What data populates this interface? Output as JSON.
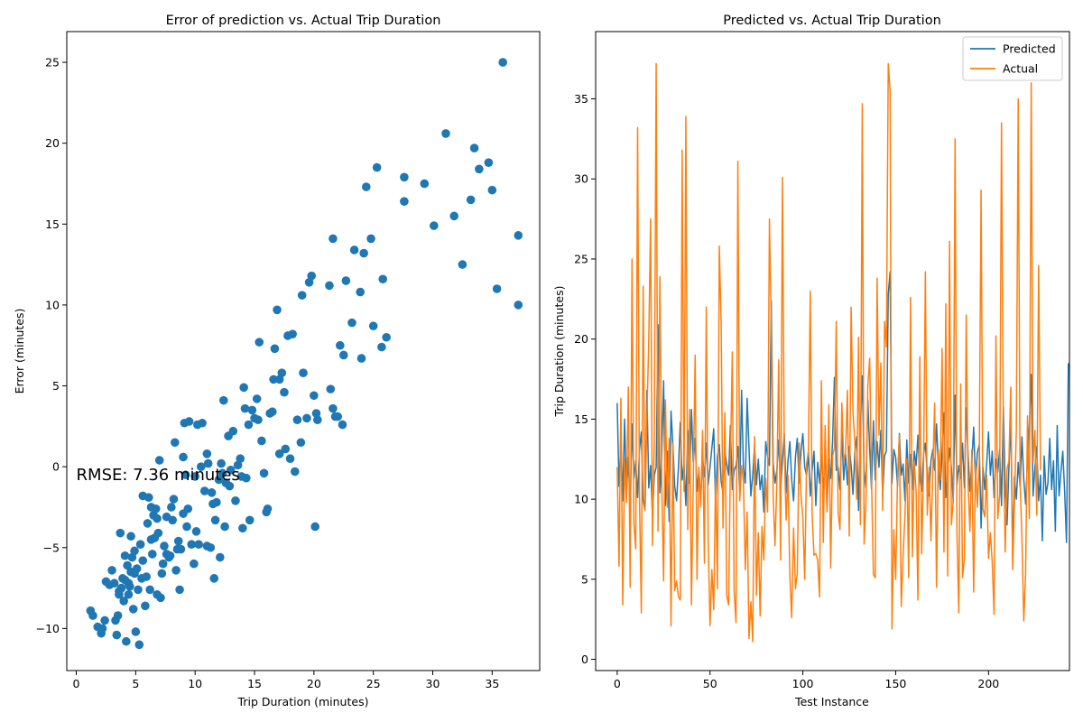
{
  "chart_data": [
    {
      "type": "scatter",
      "title": "Error of prediction vs. Actual Trip Duration",
      "xlabel": "Trip Duration (minutes)",
      "ylabel": "Error (minutes)",
      "xlim": [
        -0.8,
        39.0
      ],
      "ylim": [
        -12.6,
        26.9
      ],
      "xticks": [
        0,
        5,
        10,
        15,
        20,
        25,
        30,
        35
      ],
      "yticks": [
        -10,
        -5,
        0,
        5,
        10,
        15,
        20,
        25
      ],
      "color": "#1f77b4",
      "annotation": {
        "text": "RMSE: 7.36 minutes",
        "x": 0.0,
        "y": -0.5
      },
      "points": [
        [
          1.2,
          -8.9
        ],
        [
          1.4,
          -9.2
        ],
        [
          1.8,
          -9.9
        ],
        [
          2.1,
          -10.3
        ],
        [
          2.4,
          -9.5
        ],
        [
          2.5,
          -7.1
        ],
        [
          2.8,
          -7.3
        ],
        [
          3.0,
          -6.4
        ],
        [
          3.2,
          -7.2
        ],
        [
          3.4,
          -10.4
        ],
        [
          3.5,
          -9.2
        ],
        [
          3.6,
          -7.7
        ],
        [
          3.7,
          -4.1
        ],
        [
          3.8,
          -7.5
        ],
        [
          3.9,
          -6.9
        ],
        [
          4.0,
          -8.3
        ],
        [
          4.1,
          -7.0
        ],
        [
          4.1,
          -5.5
        ],
        [
          4.2,
          -10.8
        ],
        [
          4.3,
          -6.1
        ],
        [
          4.4,
          -7.2
        ],
        [
          4.5,
          -7.4
        ],
        [
          4.6,
          -6.5
        ],
        [
          4.6,
          -4.3
        ],
        [
          4.7,
          -5.6
        ],
        [
          4.8,
          -8.8
        ],
        [
          4.9,
          -5.2
        ],
        [
          5.0,
          -10.2
        ],
        [
          5.1,
          -6.3
        ],
        [
          5.3,
          -11.0
        ],
        [
          5.4,
          -4.8
        ],
        [
          5.5,
          -6.9
        ],
        [
          5.6,
          -5.8
        ],
        [
          5.6,
          -1.8
        ],
        [
          5.8,
          -8.6
        ],
        [
          5.9,
          -6.8
        ],
        [
          6.0,
          -3.5
        ],
        [
          6.1,
          -1.9
        ],
        [
          6.2,
          -7.6
        ],
        [
          6.3,
          -4.5
        ],
        [
          6.4,
          -5.4
        ],
        [
          6.5,
          -3.0
        ],
        [
          6.6,
          -4.4
        ],
        [
          6.7,
          -2.6
        ],
        [
          6.8,
          -3.2
        ],
        [
          6.9,
          -4.1
        ],
        [
          7.0,
          0.4
        ],
        [
          7.1,
          -8.1
        ],
        [
          7.2,
          -6.6
        ],
        [
          7.3,
          -6.0
        ],
        [
          7.4,
          -4.9
        ],
        [
          7.6,
          -3.1
        ],
        [
          7.8,
          -5.6
        ],
        [
          8.0,
          -2.5
        ],
        [
          8.1,
          -3.3
        ],
        [
          8.2,
          -2.0
        ],
        [
          8.3,
          1.5
        ],
        [
          8.4,
          -6.4
        ],
        [
          8.6,
          -4.6
        ],
        [
          8.7,
          -7.6
        ],
        [
          8.8,
          -5.1
        ],
        [
          9.0,
          0.6
        ],
        [
          9.1,
          2.7
        ],
        [
          9.2,
          -0.5
        ],
        [
          9.3,
          -3.7
        ],
        [
          9.4,
          -2.6
        ],
        [
          9.5,
          2.8
        ],
        [
          9.7,
          -4.8
        ],
        [
          9.9,
          -6.0
        ],
        [
          10.0,
          -0.6
        ],
        [
          10.2,
          2.6
        ],
        [
          10.3,
          -4.8
        ],
        [
          10.5,
          0.0
        ],
        [
          10.6,
          2.7
        ],
        [
          10.8,
          -1.5
        ],
        [
          11.0,
          0.8
        ],
        [
          11.1,
          0.2
        ],
        [
          11.3,
          -5.0
        ],
        [
          11.4,
          -1.6
        ],
        [
          11.5,
          -2.3
        ],
        [
          11.6,
          -6.9
        ],
        [
          11.7,
          -3.3
        ],
        [
          11.8,
          -2.2
        ],
        [
          12.0,
          -0.8
        ],
        [
          12.1,
          -5.6
        ],
        [
          12.2,
          0.2
        ],
        [
          12.3,
          -0.4
        ],
        [
          12.4,
          4.1
        ],
        [
          12.5,
          -3.7
        ],
        [
          12.6,
          -1.0
        ],
        [
          12.8,
          1.9
        ],
        [
          13.0,
          -0.2
        ],
        [
          13.2,
          2.2
        ],
        [
          13.4,
          -2.1
        ],
        [
          13.6,
          0.1
        ],
        [
          13.8,
          0.5
        ],
        [
          14.0,
          -3.8
        ],
        [
          14.1,
          4.9
        ],
        [
          14.2,
          3.6
        ],
        [
          14.3,
          -0.7
        ],
        [
          14.5,
          2.6
        ],
        [
          14.6,
          -3.3
        ],
        [
          14.8,
          3.5
        ],
        [
          15.0,
          3.0
        ],
        [
          15.2,
          4.2
        ],
        [
          15.4,
          7.7
        ],
        [
          15.6,
          1.6
        ],
        [
          15.8,
          -0.4
        ],
        [
          16.0,
          -2.8
        ],
        [
          16.1,
          -2.6
        ],
        [
          16.3,
          3.3
        ],
        [
          16.5,
          3.4
        ],
        [
          16.6,
          5.4
        ],
        [
          16.7,
          7.3
        ],
        [
          16.9,
          9.7
        ],
        [
          17.1,
          5.4
        ],
        [
          17.3,
          5.8
        ],
        [
          17.5,
          4.6
        ],
        [
          17.6,
          1.1
        ],
        [
          17.8,
          8.1
        ],
        [
          18.0,
          0.5
        ],
        [
          18.2,
          8.2
        ],
        [
          18.4,
          -0.3
        ],
        [
          18.9,
          1.5
        ],
        [
          19.0,
          10.6
        ],
        [
          19.1,
          5.8
        ],
        [
          19.4,
          3.0
        ],
        [
          19.6,
          11.4
        ],
        [
          19.8,
          11.8
        ],
        [
          20.0,
          4.4
        ],
        [
          20.2,
          3.3
        ],
        [
          20.3,
          2.9
        ],
        [
          21.3,
          11.2
        ],
        [
          21.4,
          4.8
        ],
        [
          21.6,
          14.1
        ],
        [
          21.6,
          3.6
        ],
        [
          21.8,
          3.1
        ],
        [
          22.0,
          3.1
        ],
        [
          22.2,
          7.5
        ],
        [
          22.4,
          2.6
        ],
        [
          22.5,
          6.9
        ],
        [
          22.7,
          11.5
        ],
        [
          23.2,
          8.9
        ],
        [
          23.4,
          13.4
        ],
        [
          23.9,
          10.8
        ],
        [
          24.0,
          6.7
        ],
        [
          24.2,
          13.2
        ],
        [
          24.4,
          17.3
        ],
        [
          24.8,
          14.1
        ],
        [
          25.0,
          8.7
        ],
        [
          25.3,
          18.5
        ],
        [
          25.7,
          7.4
        ],
        [
          25.8,
          11.6
        ],
        [
          26.1,
          8.0
        ],
        [
          27.6,
          17.9
        ],
        [
          27.6,
          16.4
        ],
        [
          29.3,
          17.5
        ],
        [
          30.1,
          14.9
        ],
        [
          31.1,
          20.6
        ],
        [
          31.8,
          15.5
        ],
        [
          32.5,
          12.5
        ],
        [
          33.2,
          16.5
        ],
        [
          33.5,
          19.7
        ],
        [
          33.9,
          18.4
        ],
        [
          34.7,
          18.8
        ],
        [
          35.0,
          17.1
        ],
        [
          35.4,
          11.0
        ],
        [
          35.9,
          25.0
        ],
        [
          37.2,
          14.3
        ],
        [
          37.2,
          10.0
        ],
        [
          20.1,
          -3.7
        ],
        [
          18.6,
          2.9
        ],
        [
          17.1,
          0.8
        ],
        [
          15.3,
          2.9
        ],
        [
          13.9,
          -0.6
        ],
        [
          8.5,
          -5.1
        ],
        [
          10.1,
          -4.0
        ],
        [
          6.3,
          -2.5
        ],
        [
          5.2,
          -7.6
        ],
        [
          3.3,
          -9.5
        ],
        [
          2.2,
          -10.0
        ],
        [
          4.4,
          -7.9
        ],
        [
          7.6,
          -5.4
        ],
        [
          9.0,
          -2.9
        ],
        [
          11.0,
          -4.9
        ],
        [
          12.9,
          -1.2
        ],
        [
          6.8,
          -7.9
        ],
        [
          7.9,
          -5.5
        ],
        [
          4.9,
          -6.6
        ],
        [
          3.6,
          -7.9
        ]
      ]
    },
    {
      "type": "line",
      "title": "Predicted vs. Actual Trip Duration",
      "xlabel": "Test Instance",
      "ylabel": "Trip Duration (minutes)",
      "xlim": [
        -11.6,
        243.6
      ],
      "ylim": [
        -0.7,
        39.2
      ],
      "xticks": [
        0,
        50,
        100,
        150,
        200
      ],
      "yticks": [
        0,
        5,
        10,
        15,
        20,
        25,
        30,
        35
      ],
      "legend_position": "top-right",
      "series": [
        {
          "name": "Predicted",
          "color": "#1f77b4",
          "values": [
            16.0,
            10.8,
            13.8,
            9.9,
            15.0,
            10.4,
            12.6,
            9.2,
            14.7,
            11.3,
            12.4,
            10.1,
            13.1,
            14.2,
            10.0,
            9.3,
            16.8,
            10.7,
            12.1,
            9.0,
            11.5,
            12.0,
            20.9,
            10.4,
            12.7,
            17.4,
            9.6,
            13.0,
            8.6,
            15.5,
            13.4,
            10.8,
            9.9,
            12.0,
            14.8,
            11.2,
            12.2,
            9.6,
            14.3,
            11.0,
            15.6,
            12.3,
            13.8,
            10.5,
            11.8,
            10.0,
            12.6,
            11.4,
            13.5,
            10.9,
            12.0,
            13.2,
            14.4,
            9.7,
            12.7,
            13.4,
            11.1,
            10.4,
            13.0,
            12.2,
            11.5,
            14.6,
            10.6,
            11.8,
            12.1,
            13.3,
            10.4,
            16.8,
            12.0,
            11.0,
            16.3,
            13.2,
            10.2,
            11.5,
            13.3,
            10.9,
            12.5,
            10.6,
            11.5,
            9.2,
            13.6,
            12.7,
            12.1,
            22.4,
            12.3,
            11.0,
            11.8,
            13.7,
            10.6,
            12.4,
            14.1,
            10.4,
            12.4,
            13.6,
            11.2,
            9.9,
            12.6,
            13.8,
            11.0,
            13.0,
            14.1,
            12.0,
            11.5,
            12.9,
            10.2,
            11.8,
            13.0,
            9.6,
            12.3,
            11.0,
            12.8,
            10.3,
            13.2,
            9.4,
            12.5,
            11.3,
            13.6,
            17.6,
            11.8,
            12.0,
            10.6,
            14.2,
            11.2,
            12.8,
            10.9,
            13.3,
            12.1,
            10.3,
            12.9,
            13.9,
            9.3,
            14.5,
            17.7,
            11.8,
            10.7,
            16.2,
            13.1,
            10.6,
            14.9,
            11.2,
            13.6,
            12.0,
            14.3,
            10.2,
            12.7,
            13.0,
            22.8,
            24.2,
            11.0,
            13.1,
            12.6,
            10.8,
            14.1,
            11.5,
            12.2,
            9.9,
            13.7,
            11.0,
            12.8,
            10.6,
            13.0,
            12.1,
            14.0,
            11.3,
            10.5,
            12.8,
            13.5,
            11.6,
            10.2,
            12.4,
            13.1,
            11.8,
            14.7,
            12.0,
            10.6,
            12.9,
            15.4,
            10.1,
            11.7,
            13.2,
            12.0,
            9.8,
            16.5,
            10.9,
            12.1,
            11.3,
            13.5,
            10.7,
            15.7,
            12.8,
            10.5,
            12.3,
            14.5,
            11.1,
            12.9,
            13.4,
            8.2,
            12.0,
            10.6,
            12.2,
            14.2,
            11.5,
            13.0,
            10.1,
            12.5,
            11.7,
            13.1,
            9.6,
            15.8,
            10.7,
            8.4,
            12.0,
            15.0,
            6.5,
            11.4,
            10.0,
            12.3,
            10.8,
            13.9,
            11.2,
            9.7,
            12.6,
            14.6,
            17.8,
            10.2,
            12.0,
            13.3,
            9.9,
            11.5,
            7.4,
            12.7,
            10.3,
            11.0,
            13.8,
            10.6,
            12.4,
            8.0,
            14.6,
            10.2,
            11.7,
            13.0,
            10.5,
            7.3,
            18.5
          ]
        },
        {
          "name": "Actual",
          "color": "#ff7f0e",
          "values": [
            12.0,
            5.8,
            16.3,
            3.4,
            12.5,
            9.8,
            17.0,
            4.5,
            25.0,
            8.5,
            6.9,
            33.2,
            10.1,
            2.9,
            23.3,
            9.3,
            15.0,
            19.9,
            27.5,
            7.1,
            14.0,
            37.2,
            8.0,
            23.9,
            11.0,
            4.9,
            16.2,
            9.5,
            13.8,
            2.1,
            13.5,
            4.3,
            4.9,
            3.9,
            3.7,
            31.8,
            10.5,
            33.9,
            8.1,
            15.6,
            3.4,
            11.2,
            19.0,
            5.0,
            12.0,
            9.5,
            14.3,
            6.0,
            22.0,
            7.5,
            2.1,
            5.6,
            3.1,
            11.3,
            4.4,
            25.8,
            21.0,
            8.2,
            15.4,
            4.0,
            3.4,
            12.3,
            19.2,
            4.2,
            2.3,
            31.1,
            9.9,
            12.1,
            11.1,
            5.6,
            9.2,
            1.3,
            3.6,
            1.1,
            13.9,
            4.0,
            7.9,
            2.7,
            8.3,
            6.2,
            11.3,
            9.2,
            27.5,
            20.9,
            10.3,
            7.1,
            11.0,
            18.7,
            6.2,
            30.1,
            13.1,
            8.7,
            11.5,
            5.2,
            2.6,
            8.2,
            4.4,
            5.4,
            13.5,
            10.2,
            8.9,
            5.0,
            12.2,
            13.0,
            23.0,
            9.1,
            6.5,
            6.6,
            6.2,
            3.9,
            17.4,
            7.3,
            14.6,
            9.2,
            15.9,
            5.7,
            12.7,
            13.2,
            21.1,
            9.2,
            8.1,
            16.0,
            12.4,
            12.9,
            16.8,
            7.7,
            22.0,
            15.5,
            13.5,
            10.0,
            20.1,
            8.4,
            34.7,
            7.2,
            9.8,
            17.1,
            18.8,
            11.2,
            5.3,
            5.1,
            23.8,
            14.0,
            18.5,
            9.3,
            21.1,
            19.5,
            37.2,
            35.5,
            1.9,
            8.1,
            5.0,
            11.4,
            14.0,
            3.3,
            6.5,
            9.0,
            12.5,
            5.1,
            22.6,
            6.4,
            12.3,
            10.5,
            3.7,
            18.9,
            6.6,
            11.8,
            24.2,
            9.0,
            12.0,
            7.4,
            11.8,
            16.0,
            4.5,
            13.1,
            11.2,
            19.4,
            6.7,
            22.2,
            5.2,
            26.1,
            8.4,
            9.9,
            32.5,
            8.0,
            2.9,
            17.2,
            5.1,
            6.3,
            21.5,
            10.9,
            8.0,
            13.1,
            4.2,
            12.2,
            9.5,
            12.3,
            29.3,
            9.4,
            8.9,
            11.5,
            6.3,
            7.9,
            6.1,
            2.8,
            20.2,
            8.8,
            10.3,
            33.5,
            13.7,
            6.7,
            11.9,
            12.4,
            17.0,
            5.6,
            9.8,
            14.4,
            35.0,
            11.1,
            7.6,
            2.4,
            5.4,
            15.2,
            8.8,
            36.0,
            12.3,
            14.3,
            9.0,
            24.6,
            11.8
          ]
        }
      ]
    }
  ]
}
